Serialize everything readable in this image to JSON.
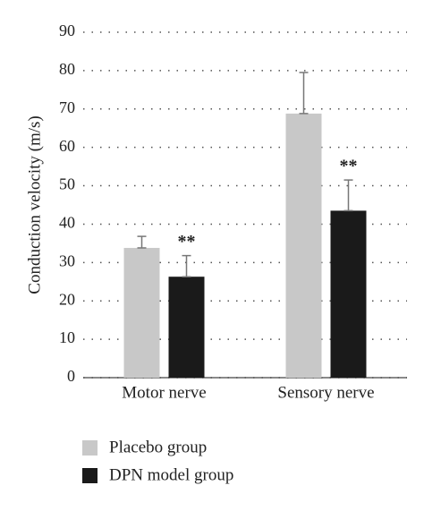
{
  "chart_data": {
    "type": "bar",
    "y_label": "Conduction velocity (m/s)",
    "categories": [
      "Motor nerve",
      "Sensory nerve"
    ],
    "series": [
      {
        "name": "Placebo group",
        "color": "#c8c8c8",
        "values": [
          33.8,
          68.8
        ],
        "errors": [
          3,
          10.7
        ]
      },
      {
        "name": "DPN model group",
        "color": "#1a1a1a",
        "values": [
          26.3,
          43.5
        ],
        "errors": [
          5.5,
          8
        ],
        "annotations": [
          "**",
          "**"
        ]
      }
    ],
    "ylim": [
      0,
      90
    ],
    "yticks": [
      0,
      10,
      20,
      30,
      40,
      50,
      60,
      70,
      80,
      90
    ],
    "grid": true
  }
}
